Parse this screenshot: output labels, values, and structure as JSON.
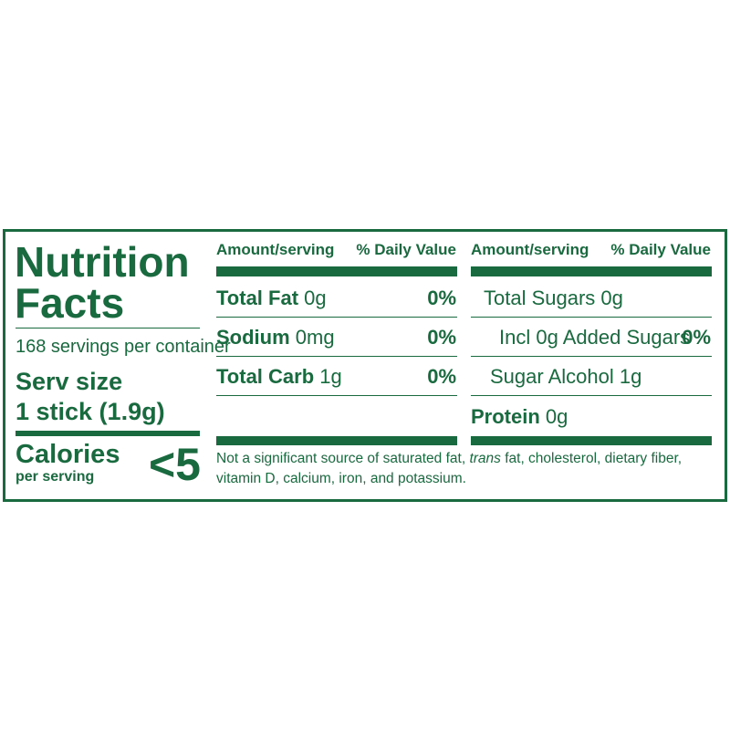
{
  "title_lines": [
    "Nutrition",
    "Facts"
  ],
  "servings": "168 servings per container",
  "serv_size": {
    "label": "Serv size",
    "value": "1 stick (1.9g)"
  },
  "calories": {
    "label": "Calories",
    "sublabel": "per serving",
    "value": "<5"
  },
  "columns": [
    {
      "header": {
        "amount": "Amount/serving",
        "dv": "% Daily Value"
      },
      "rows": [
        {
          "label": "Total Fat",
          "amount": "0g",
          "dv": "0%"
        },
        {
          "label": "Sodium",
          "amount": "0mg",
          "dv": "0%"
        },
        {
          "label": "Total Carb",
          "amount": "1g",
          "dv": "0%"
        }
      ]
    },
    {
      "header": {
        "amount": "Amount/serving",
        "dv": "% Daily Value"
      },
      "rows": [
        {
          "label": "Total Sugars",
          "amount": "0g"
        },
        {
          "label": "Incl 0g Added Sugars",
          "dv": "0%"
        },
        {
          "label": "Sugar Alcohol",
          "amount": "1g"
        },
        {
          "label": "Protein",
          "amount": "0g"
        }
      ]
    }
  ],
  "footnote": {
    "before": "Not a significant source of saturated fat, ",
    "italic": "trans",
    "after": " fat, cholesterol, dietary fiber, vitamin D, calcium, iron, and potassium."
  }
}
